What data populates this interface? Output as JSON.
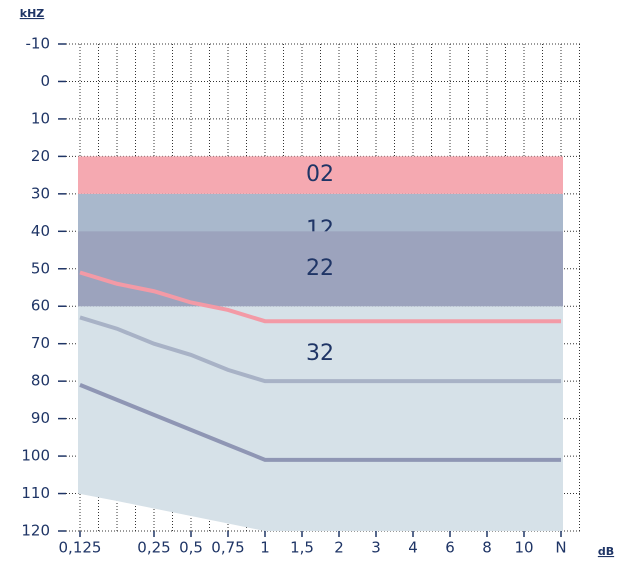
{
  "chart_data": {
    "type": "band",
    "y_label": "kHZ",
    "x_label": "dB",
    "categories": [
      "0,125",
      null,
      "0,25",
      "0,5",
      "0,75",
      "1",
      "1,5",
      "2",
      "3",
      "4",
      "6",
      "8",
      "10",
      "N"
    ],
    "ylim": [
      -10,
      120
    ],
    "y_inverted": true,
    "yticks": [
      -10,
      0,
      10,
      20,
      30,
      40,
      50,
      60,
      70,
      80,
      90,
      100,
      110,
      120
    ],
    "grid": true,
    "bands": [
      {
        "name": "12",
        "color": "#a9b8cc",
        "from": 30,
        "to": 60
      },
      {
        "name": "22",
        "color": "#9ca3bd",
        "from": 40,
        "to": 60
      },
      {
        "name": "02",
        "color": "#f5a9b1",
        "from": 20,
        "to": 30
      }
    ],
    "area": {
      "name": "32",
      "color": "#d6e1e8",
      "top": 60,
      "values": [
        110,
        112,
        114,
        116,
        118,
        120,
        120,
        120,
        120,
        120,
        120,
        120,
        120,
        120
      ]
    },
    "series": [
      {
        "color": "#f39aa6",
        "values": [
          51,
          54,
          56,
          59,
          61,
          64,
          64,
          64,
          64,
          64,
          64,
          64,
          64,
          64
        ]
      },
      {
        "color": "#a8b2c6",
        "values": [
          63,
          66,
          70,
          73,
          77,
          80,
          80,
          80,
          80,
          80,
          80,
          80,
          80,
          80
        ]
      },
      {
        "color": "#8f96b4",
        "values": [
          81,
          85,
          89,
          93,
          97,
          101,
          101,
          101,
          101,
          101,
          101,
          101,
          101,
          101
        ]
      }
    ]
  }
}
